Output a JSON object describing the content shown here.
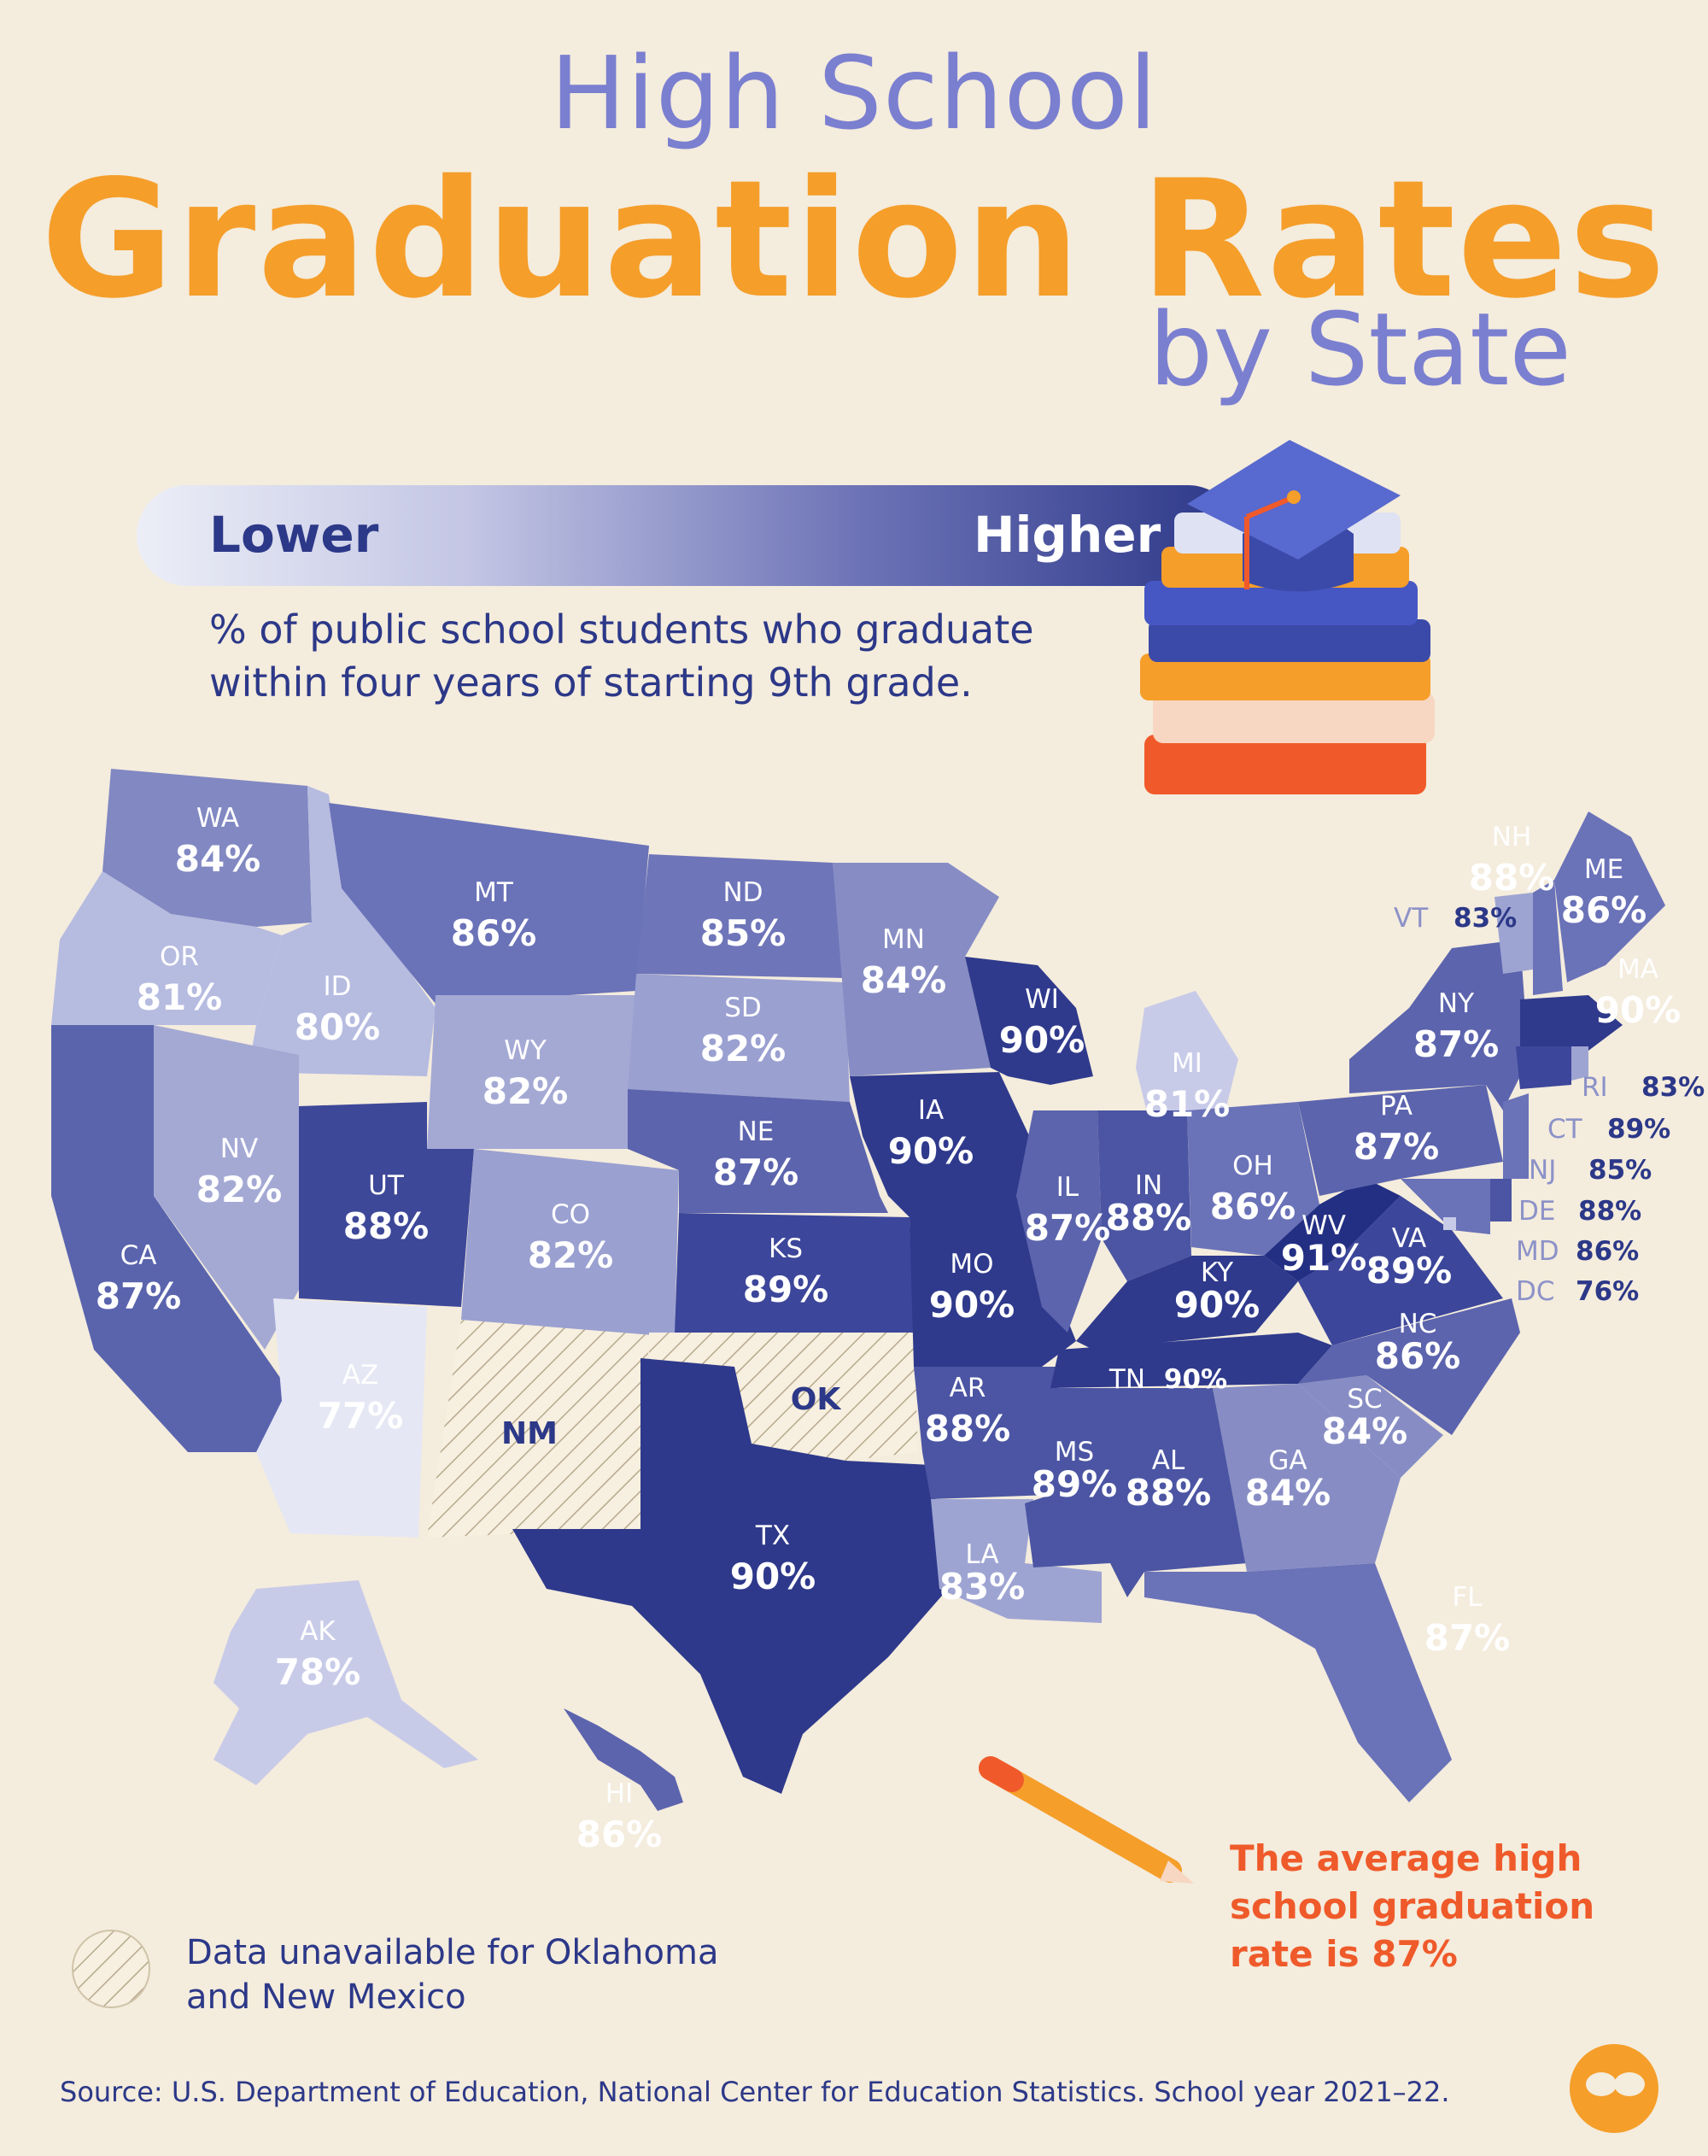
{
  "title": {
    "line1": "High School",
    "line2": "Graduation Rates",
    "line3": "by State"
  },
  "legend": {
    "lower": "Lower",
    "higher": "Higher",
    "description_line1": "% of public school students who graduate",
    "description_line2": "within four years of starting 9th grade."
  },
  "colors": {
    "background": "#f4ecdd",
    "accent_orange": "#f59e2a",
    "accent_red": "#ef5a2a",
    "navy": "#2c3888",
    "scale_low": "#eceef7",
    "scale_high": "#26318a"
  },
  "states": [
    {
      "code": "WA",
      "value": "84%"
    },
    {
      "code": "OR",
      "value": "81%"
    },
    {
      "code": "CA",
      "value": "87%"
    },
    {
      "code": "ID",
      "value": "80%"
    },
    {
      "code": "NV",
      "value": "82%"
    },
    {
      "code": "MT",
      "value": "86%"
    },
    {
      "code": "WY",
      "value": "82%"
    },
    {
      "code": "UT",
      "value": "88%"
    },
    {
      "code": "AZ",
      "value": "77%"
    },
    {
      "code": "CO",
      "value": "82%"
    },
    {
      "code": "ND",
      "value": "85%"
    },
    {
      "code": "SD",
      "value": "82%"
    },
    {
      "code": "NE",
      "value": "87%"
    },
    {
      "code": "KS",
      "value": "89%"
    },
    {
      "code": "TX",
      "value": "90%"
    },
    {
      "code": "MN",
      "value": "84%"
    },
    {
      "code": "IA",
      "value": "90%"
    },
    {
      "code": "MO",
      "value": "90%"
    },
    {
      "code": "AR",
      "value": "88%"
    },
    {
      "code": "LA",
      "value": "83%"
    },
    {
      "code": "WI",
      "value": "90%"
    },
    {
      "code": "IL",
      "value": "87%"
    },
    {
      "code": "MI",
      "value": "81%"
    },
    {
      "code": "IN",
      "value": "88%"
    },
    {
      "code": "OH",
      "value": "86%"
    },
    {
      "code": "KY",
      "value": "90%"
    },
    {
      "code": "TN",
      "value": "90%"
    },
    {
      "code": "MS",
      "value": "89%"
    },
    {
      "code": "AL",
      "value": "88%"
    },
    {
      "code": "GA",
      "value": "84%"
    },
    {
      "code": "FL",
      "value": "87%"
    },
    {
      "code": "SC",
      "value": "84%"
    },
    {
      "code": "NC",
      "value": "86%"
    },
    {
      "code": "VA",
      "value": "89%"
    },
    {
      "code": "WV",
      "value": "91%"
    },
    {
      "code": "PA",
      "value": "87%"
    },
    {
      "code": "NY",
      "value": "87%"
    },
    {
      "code": "VT",
      "value": "83%"
    },
    {
      "code": "NH",
      "value": "88%"
    },
    {
      "code": "ME",
      "value": "86%"
    },
    {
      "code": "MA",
      "value": "90%"
    },
    {
      "code": "RI",
      "value": "83%"
    },
    {
      "code": "CT",
      "value": "89%"
    },
    {
      "code": "NJ",
      "value": "85%"
    },
    {
      "code": "DE",
      "value": "88%"
    },
    {
      "code": "MD",
      "value": "86%"
    },
    {
      "code": "DC",
      "value": "76%"
    },
    {
      "code": "AK",
      "value": "78%"
    },
    {
      "code": "HI",
      "value": "86%"
    }
  ],
  "unavailable_states": [
    "NM",
    "OK"
  ],
  "notes": {
    "average_line1": "The average high",
    "average_line2": "school graduation",
    "average_line3": "rate is 87%",
    "unavailable_line1": "Data unavailable for Oklahoma",
    "unavailable_line2": "and New Mexico"
  },
  "source": "Source: U.S. Department of Education, National Center for Education Statistics. School year 2021–22.",
  "icons": [
    "graduation-cap-icon",
    "book-stack-icon",
    "pencil-icon",
    "hatch-swatch-icon",
    "brand-logo-icon"
  ]
}
